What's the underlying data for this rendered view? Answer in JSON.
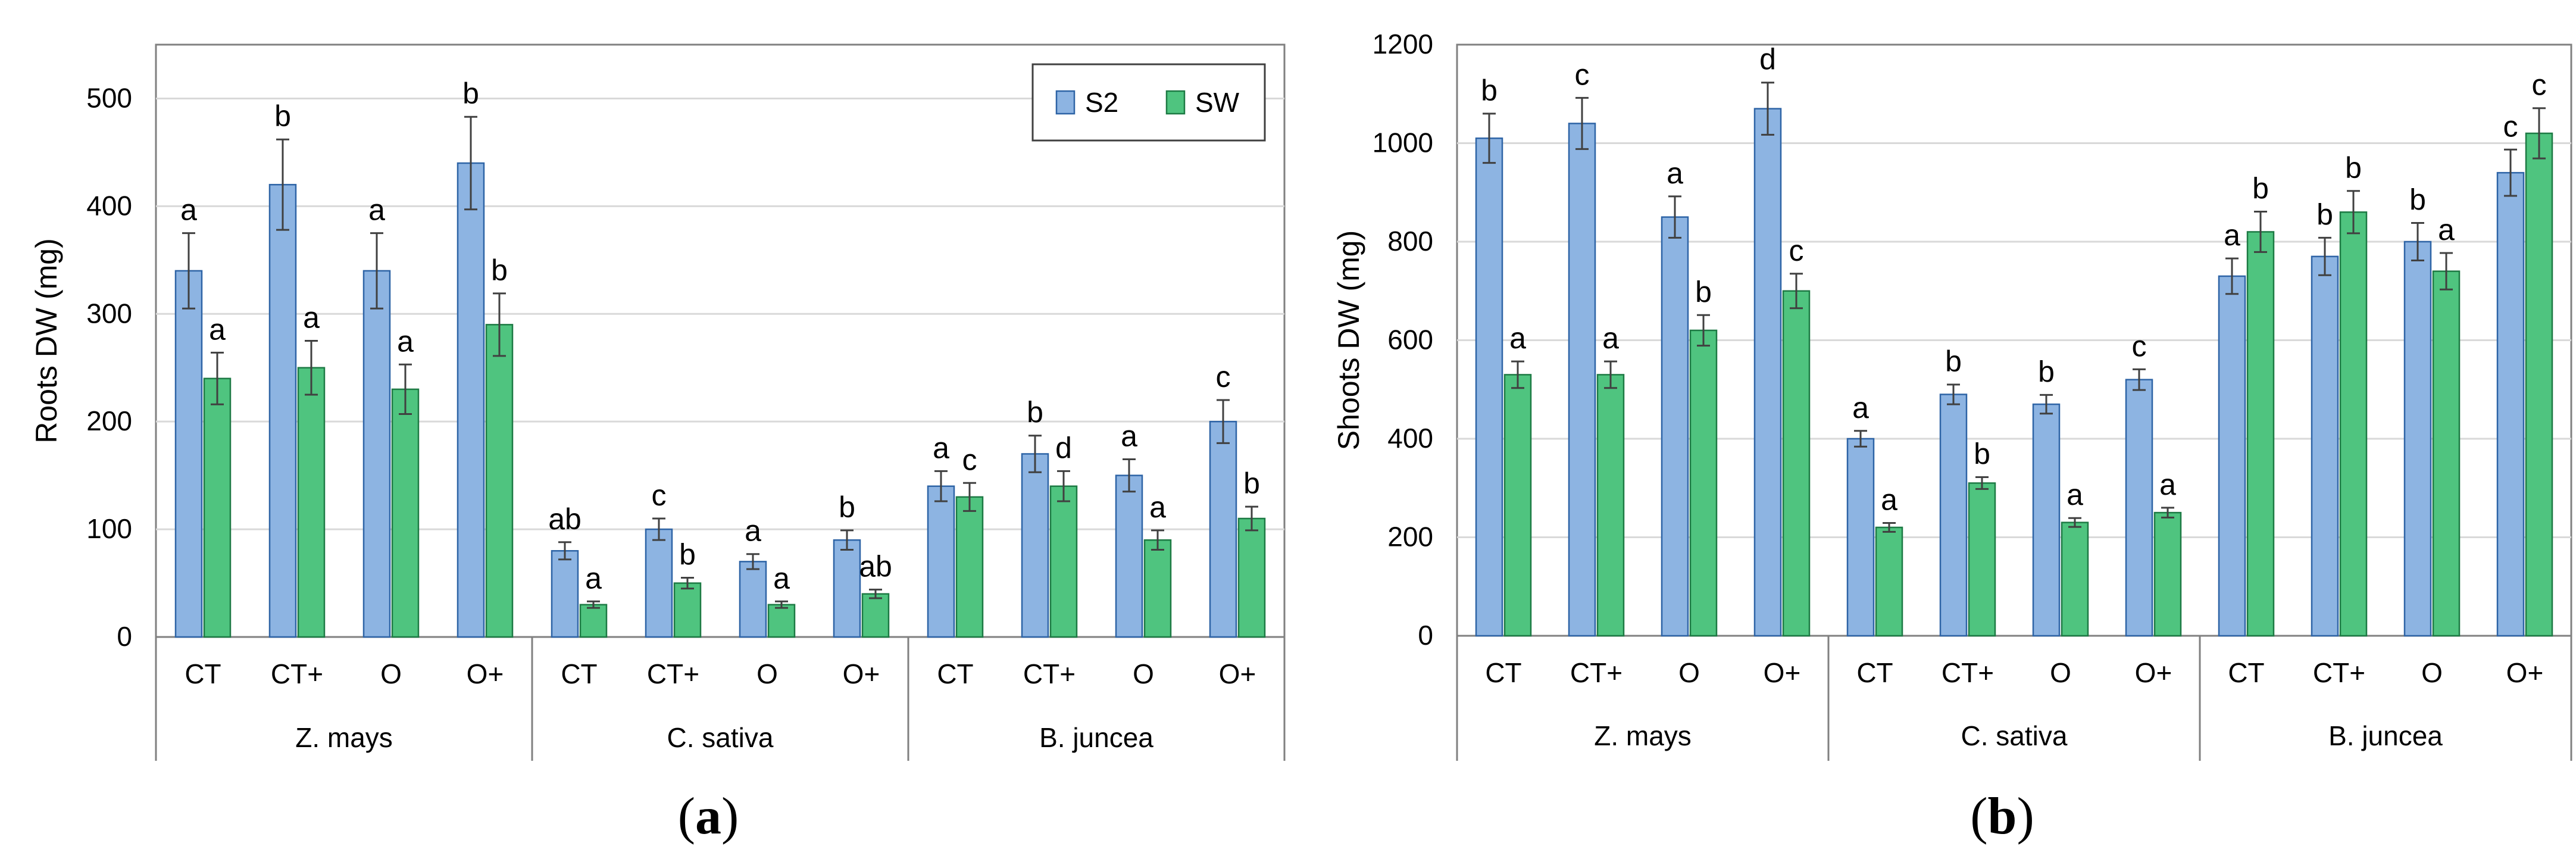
{
  "colors": {
    "S2": "#8DB4E2",
    "S2_edge": "#2E64A6",
    "SW": "#4FC47F",
    "SW_edge": "#1D7A44",
    "grid": "#D9D9D9",
    "axis": "#808080"
  },
  "chart_data": [
    {
      "panel": "a",
      "panel_label": [
        "(",
        "a",
        ")"
      ],
      "type": "bar",
      "ylabel": "Roots DW (mg)",
      "ylim": [
        0,
        550
      ],
      "yticks": [
        0,
        100,
        200,
        300,
        400,
        500
      ],
      "grid": true,
      "legend_position": "top-right",
      "groups": [
        {
          "name": "Z. mays",
          "categories": [
            "CT",
            "CT+",
            "O",
            "O+"
          ]
        },
        {
          "name": "C. sativa",
          "categories": [
            "CT",
            "CT+",
            "O",
            "O+"
          ]
        },
        {
          "name": "B. juncea",
          "categories": [
            "CT",
            "CT+",
            "O",
            "O+"
          ]
        }
      ],
      "series": [
        {
          "name": "S2",
          "values": [
            340,
            420,
            340,
            440,
            80,
            100,
            70,
            90,
            140,
            170,
            150,
            200
          ],
          "errors": [
            35,
            42,
            35,
            43,
            8,
            10,
            7,
            9,
            14,
            17,
            15,
            20
          ],
          "letters": [
            "a",
            "b",
            "a",
            "b",
            "ab",
            "c",
            "a",
            "b",
            "a",
            "b",
            "a",
            "c"
          ]
        },
        {
          "name": "SW",
          "values": [
            240,
            250,
            230,
            290,
            30,
            50,
            30,
            40,
            130,
            140,
            90,
            110
          ],
          "errors": [
            24,
            25,
            23,
            29,
            3,
            5,
            3,
            4,
            13,
            14,
            9,
            11
          ],
          "letters": [
            "a",
            "a",
            "a",
            "b",
            "a",
            "b",
            "a",
            "ab",
            "c",
            "d",
            "a",
            "b"
          ]
        }
      ]
    },
    {
      "panel": "b",
      "panel_label": [
        "(",
        "b",
        ")"
      ],
      "type": "bar",
      "ylabel": "Shoots DW (mg)",
      "ylim": [
        0,
        1200
      ],
      "yticks": [
        0,
        200,
        400,
        600,
        800,
        1000,
        1200
      ],
      "grid": true,
      "legend_position": "none",
      "groups": [
        {
          "name": "Z. mays",
          "categories": [
            "CT",
            "CT+",
            "O",
            "O+"
          ]
        },
        {
          "name": "C. sativa",
          "categories": [
            "CT",
            "CT+",
            "O",
            "O+"
          ]
        },
        {
          "name": "B. juncea",
          "categories": [
            "CT",
            "CT+",
            "O",
            "O+"
          ]
        }
      ],
      "series": [
        {
          "name": "S2",
          "values": [
            1010,
            1040,
            850,
            1070,
            400,
            490,
            470,
            520,
            730,
            770,
            800,
            940
          ],
          "errors": [
            50,
            52,
            42,
            53,
            16,
            20,
            19,
            21,
            36,
            38,
            38,
            47
          ],
          "letters": [
            "b",
            "c",
            "a",
            "d",
            "a",
            "b",
            "b",
            "c",
            "a",
            "b",
            "b",
            "c"
          ]
        },
        {
          "name": "SW",
          "values": [
            530,
            530,
            620,
            700,
            220,
            310,
            230,
            250,
            820,
            860,
            740,
            1020
          ],
          "errors": [
            27,
            27,
            31,
            35,
            9,
            12,
            9,
            10,
            41,
            43,
            37,
            51
          ],
          "letters": [
            "a",
            "a",
            "b",
            "c",
            "a",
            "b",
            "a",
            "a",
            "b",
            "b",
            "a",
            "c"
          ]
        }
      ]
    }
  ]
}
